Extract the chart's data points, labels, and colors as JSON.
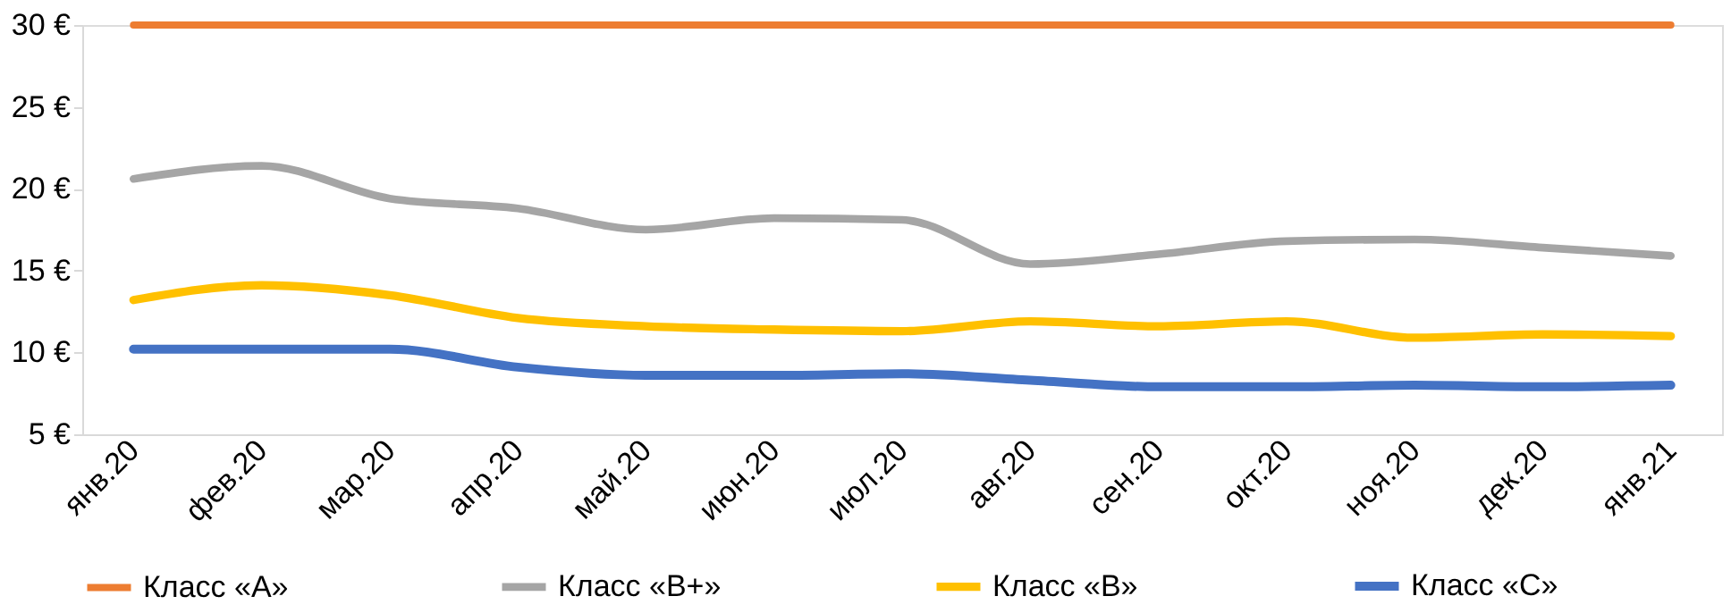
{
  "chart_data": {
    "type": "line",
    "categories": [
      "янв.20",
      "фев.20",
      "мар.20",
      "апр.20",
      "май.20",
      "июн.20",
      "июл.20",
      "авг.20",
      "сен.20",
      "окт.20",
      "ноя.20",
      "дек.20",
      "янв.21"
    ],
    "series": [
      {
        "name": "Класс «A»",
        "color": "#ed7d31",
        "values": [
          30,
          30,
          30,
          30,
          30,
          30,
          30,
          30,
          30,
          30,
          30,
          30,
          30
        ]
      },
      {
        "name": "Класс «B+»",
        "color": "#a5a5a5",
        "values": [
          20.6,
          21.4,
          19.4,
          18.8,
          17.5,
          18.2,
          18.1,
          15.4,
          16,
          16.8,
          16.9,
          16.4,
          15.9
        ]
      },
      {
        "name": "Класс «B»",
        "color": "#ffc000",
        "values": [
          13.2,
          14.1,
          13.5,
          12.1,
          11.6,
          11.4,
          11.3,
          11.9,
          11.6,
          11.9,
          10.9,
          11.1,
          11
        ]
      },
      {
        "name": "Класс «C»",
        "color": "#4472c4",
        "values": [
          10.2,
          10.2,
          10.2,
          9.1,
          8.6,
          8.6,
          8.7,
          8.3,
          7.9,
          7.9,
          8,
          7.9,
          8
        ]
      }
    ],
    "ylim": [
      5,
      30
    ],
    "yticks": [
      {
        "value": 5,
        "label": "5 €"
      },
      {
        "value": 10,
        "label": "10 €"
      },
      {
        "value": 15,
        "label": "15 €"
      },
      {
        "value": 20,
        "label": "20 €"
      },
      {
        "value": 25,
        "label": "25 €"
      },
      {
        "value": 30,
        "label": "30 €"
      }
    ],
    "grid": false,
    "legend": "bottom",
    "marker": "none",
    "line_style": "solid"
  }
}
